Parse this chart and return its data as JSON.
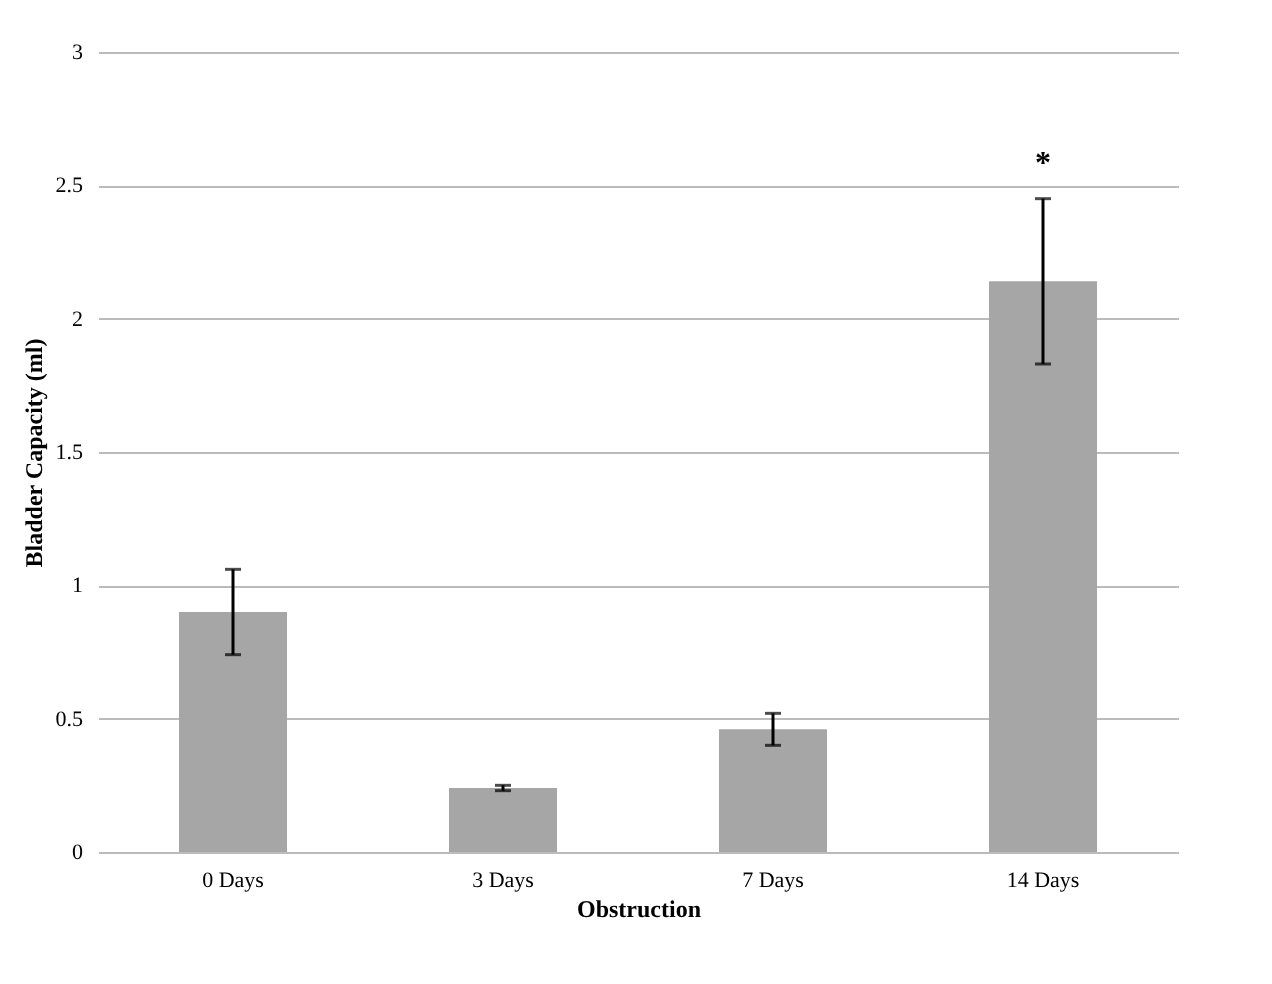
{
  "chart_data": {
    "type": "bar",
    "xlabel": "Obstruction",
    "ylabel": "Bladder Capacity (ml)",
    "categories": [
      "0 Days",
      "3 Days",
      "7 Days",
      "14 Days"
    ],
    "values": [
      0.9,
      0.24,
      0.46,
      2.14
    ],
    "errors": [
      0.16,
      0.01,
      0.06,
      0.31
    ],
    "color": "#a6a6a6",
    "ylim": [
      0,
      3
    ],
    "yticks": [
      0,
      0.5,
      1,
      1.5,
      2,
      2.5,
      3
    ],
    "grid": "y",
    "annotations": [
      "*"
    ]
  }
}
